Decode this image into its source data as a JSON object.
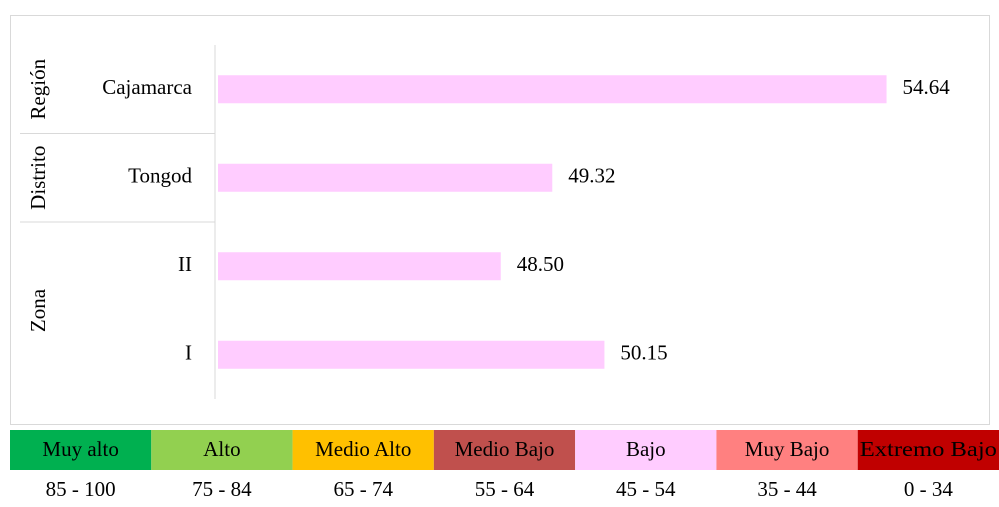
{
  "chart_data": {
    "type": "bar",
    "orientation": "horizontal",
    "color": "#ffccff",
    "xlim": [
      44,
      56
    ],
    "groups": [
      {
        "name": "Región",
        "categories": [
          "Cajamarca"
        ],
        "values": [
          54.64
        ],
        "value_labels": [
          "54.64"
        ]
      },
      {
        "name": "Distrito",
        "categories": [
          "Tongod"
        ],
        "values": [
          49.32
        ],
        "value_labels": [
          "49.32"
        ]
      },
      {
        "name": "Zona",
        "categories": [
          "II",
          "I"
        ],
        "values": [
          48.5,
          50.15
        ],
        "value_labels": [
          "48.50",
          "50.15"
        ]
      }
    ],
    "scale": [
      {
        "label": "Muy alto",
        "range": "85 - 100",
        "color": "#00b050",
        "text_color": "#000000"
      },
      {
        "label": "Alto",
        "range": "75 - 84",
        "color": "#92d050",
        "text_color": "#000000"
      },
      {
        "label": "Medio Alto",
        "range": "65 - 74",
        "color": "#ffc000",
        "text_color": "#000000"
      },
      {
        "label": "Medio Bajo",
        "range": "55 - 64",
        "color": "#c0504d",
        "text_color": "#000000"
      },
      {
        "label": "Bajo",
        "range": "45 - 54",
        "color": "#ffccff",
        "text_color": "#000000"
      },
      {
        "label": "Muy Bajo",
        "range": "35 - 44",
        "color": "#ff8080",
        "text_color": "#000000"
      },
      {
        "label": "Extremo Bajo",
        "range": "0 - 34",
        "color": "#c00000",
        "text_color": "#ff5050"
      }
    ]
  }
}
